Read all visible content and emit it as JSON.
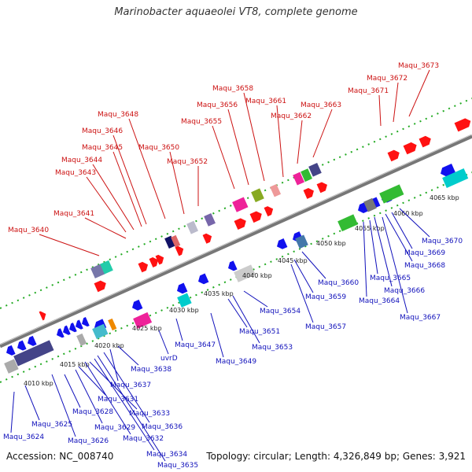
{
  "title": "Marinobacter aquaeolei VT8, complete genome",
  "footer": {
    "accession": "Accession: NC_008740",
    "topology": "Topology: circular;",
    "length": "Length: 4,326,849 bp;",
    "genes": "Genes: 3,921"
  },
  "colors": {
    "forward_label": "#cc1111",
    "reverse_label": "#1111bb",
    "forward_gene": "#ff1111",
    "reverse_gene": "#1111ee",
    "backbone": "#777777",
    "tick": "#22aa22"
  },
  "scale_ticks": [
    {
      "label": "4010 kbp",
      "kbp": 4010
    },
    {
      "label": "4015 kbp",
      "kbp": 4015
    },
    {
      "label": "4020 kbp",
      "kbp": 4020
    },
    {
      "label": "4025 kbp",
      "kbp": 4025
    },
    {
      "label": "4030 kbp",
      "kbp": 4030
    },
    {
      "label": "4035 kbp",
      "kbp": 4035
    },
    {
      "label": "4040 kbp",
      "kbp": 4040
    },
    {
      "label": "4045 kbp",
      "kbp": 4045
    },
    {
      "label": "4050 kbp",
      "kbp": 4050
    },
    {
      "label": "4055 kbp",
      "kbp": 4055
    },
    {
      "label": "4060 kbp",
      "kbp": 4060
    },
    {
      "label": "4065 kbp",
      "kbp": 4065
    }
  ],
  "forward_labels": [
    "Maqu_3640",
    "Maqu_3641",
    "Maqu_3643",
    "Maqu_3644",
    "Maqu_3645",
    "Maqu_3646",
    "Maqu_3648",
    "Maqu_3650",
    "Maqu_3652",
    "Maqu_3655",
    "Maqu_3656",
    "Maqu_3658",
    "Maqu_3661",
    "Maqu_3662",
    "Maqu_3663",
    "Maqu_3671",
    "Maqu_3672",
    "Maqu_3673"
  ],
  "reverse_labels": [
    "Maqu_3624",
    "Maqu_3625",
    "Maqu_3626",
    "Maqu_3628",
    "Maqu_3629",
    "Maqu_3631",
    "Maqu_3632",
    "Maqu_3633",
    "Maqu_3634",
    "Maqu_3635",
    "Maqu_3636",
    "Maqu_3637",
    "Maqu_3638",
    "uvrD",
    "Maqu_3647",
    "Maqu_3649",
    "Maqu_3651",
    "Maqu_3653",
    "Maqu_3654",
    "Maqu_3657",
    "Maqu_3659",
    "Maqu_3660",
    "Maqu_3664",
    "Maqu_3665",
    "Maqu_3666",
    "Maqu_3667",
    "Maqu_3668",
    "Maqu_3669",
    "Maqu_3670"
  ]
}
